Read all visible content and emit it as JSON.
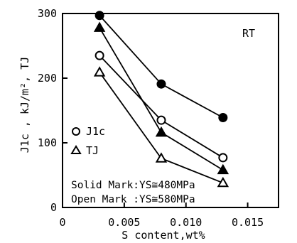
{
  "chart_data": {
    "type": "line",
    "xlabel": "S content,wt%",
    "ylabel": "J1c , kJ/m², TJ",
    "xlim": [
      0,
      0.0175
    ],
    "ylim": [
      0,
      300
    ],
    "x_ticks": [
      "0",
      "0.005",
      "0.010",
      "0.015"
    ],
    "x_tick_values": [
      0,
      0.005,
      0.01,
      0.015
    ],
    "y_ticks": [
      "0",
      "100",
      "200",
      "300"
    ],
    "y_tick_values": [
      0,
      100,
      200,
      300
    ],
    "annotation": "RT",
    "legend": [
      {
        "label": "J1c",
        "marker": "circle"
      },
      {
        "label": "TJ",
        "marker": "triangle"
      }
    ],
    "notes": [
      "Solid Mark:YS≅480MPa",
      "Open Mark :YS≅580MPa"
    ],
    "series": [
      {
        "marker": "circle",
        "fill": "solid",
        "x": [
          0.003,
          0.008,
          0.013
        ],
        "y": [
          297,
          191,
          139
        ]
      },
      {
        "marker": "triangle",
        "fill": "solid",
        "x": [
          0.003,
          0.008,
          0.013
        ],
        "y": [
          278,
          116,
          58
        ]
      },
      {
        "marker": "circle",
        "fill": "open",
        "x": [
          0.003,
          0.008,
          0.013
        ],
        "y": [
          235,
          135,
          77
        ]
      },
      {
        "marker": "triangle",
        "fill": "open",
        "x": [
          0.003,
          0.008,
          0.013
        ],
        "y": [
          209,
          76,
          38
        ]
      }
    ]
  }
}
